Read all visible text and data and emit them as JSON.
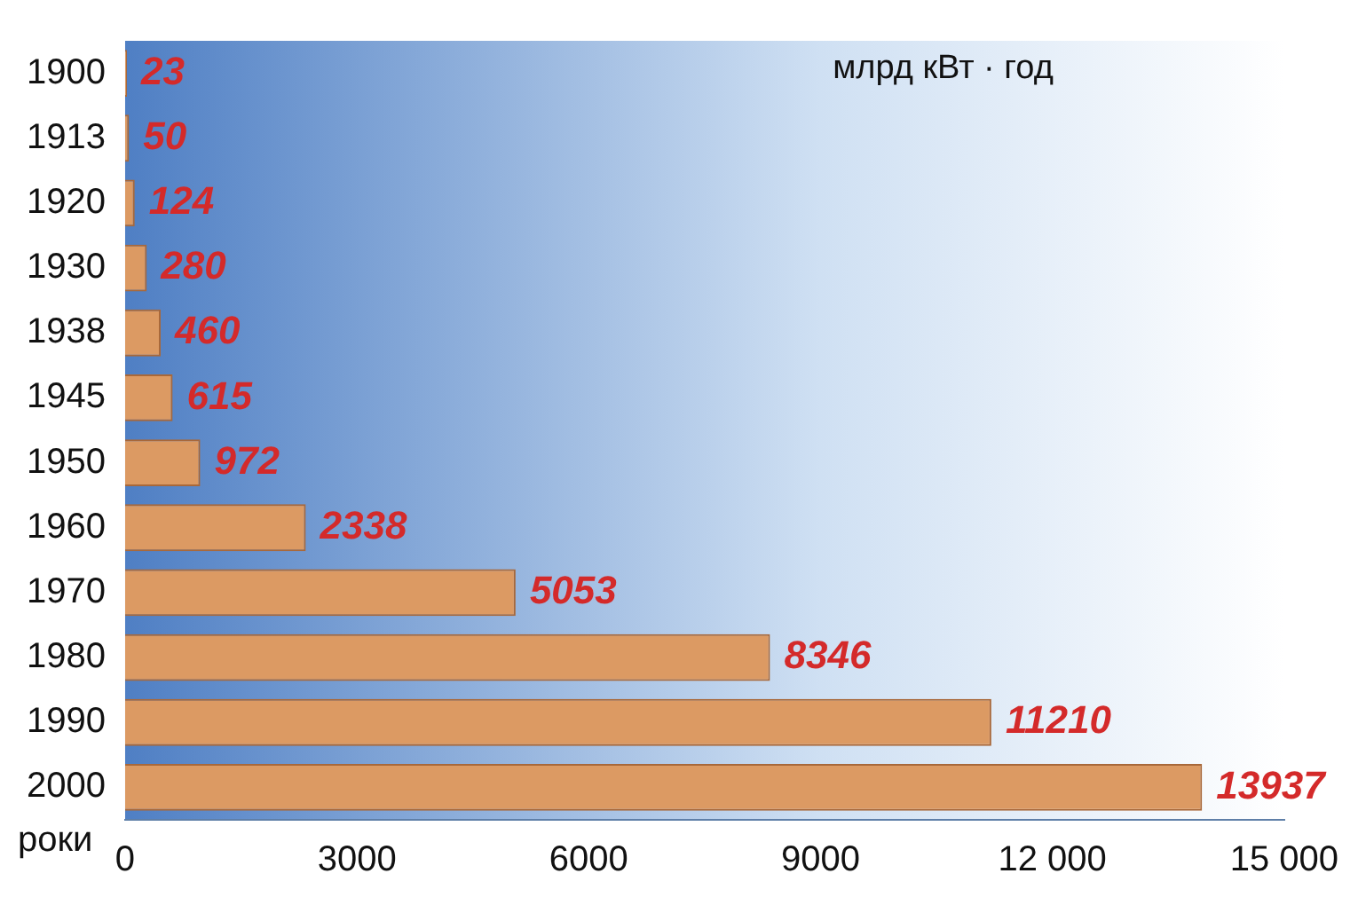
{
  "chart_data": {
    "type": "bar",
    "orientation": "horizontal",
    "ylabel": "роки",
    "annotations": [
      "млрд кВт · год"
    ],
    "categories": [
      "1900",
      "1913",
      "1920",
      "1930",
      "1938",
      "1945",
      "1950",
      "1960",
      "1970",
      "1980",
      "1990",
      "2000"
    ],
    "values": [
      23,
      50,
      124,
      280,
      460,
      615,
      972,
      2338,
      5053,
      8346,
      11210,
      13937
    ],
    "color": "#dc9a63",
    "data_labels": true,
    "xlim": [
      0,
      15000
    ],
    "xticks": [
      0,
      3000,
      6000,
      9000,
      {
        "value": 12000,
        "label": "12 000"
      },
      {
        "value": 15000,
        "label": "15 000"
      }
    ],
    "grid": false,
    "legend": false
  }
}
